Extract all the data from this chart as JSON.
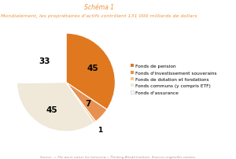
{
  "title_line1": "Schéma 1",
  "title_line2": "Mondialement, les propriétaires d'actifs contrôlent 131 000 milliards de dollars",
  "title_color": "#f0933a",
  "slices": [
    45,
    7,
    1,
    45,
    33
  ],
  "labels_on_pie": [
    "45",
    "7",
    "45",
    "33"
  ],
  "label_outside": "1",
  "colors": [
    "#e07820",
    "#e89050",
    "#f5c890",
    "#f0e8d8",
    "#ffffff"
  ],
  "legend_labels": [
    "Fonds de pension",
    "Fonds d'investissement souverains",
    "Fonds de dotation et fondations",
    "Fonds communs (y compris ETF)",
    "Fonds d'assurance"
  ],
  "legend_colors": [
    "#e07820",
    "#e89050",
    "#f5c890",
    "#f0e8d8",
    "#ffffff"
  ],
  "source_text": "Source : « The asset owner for tomorrow » Thinking Ahead Institute. Sources originelles variées.",
  "background_color": "#ffffff",
  "startangle": 90
}
